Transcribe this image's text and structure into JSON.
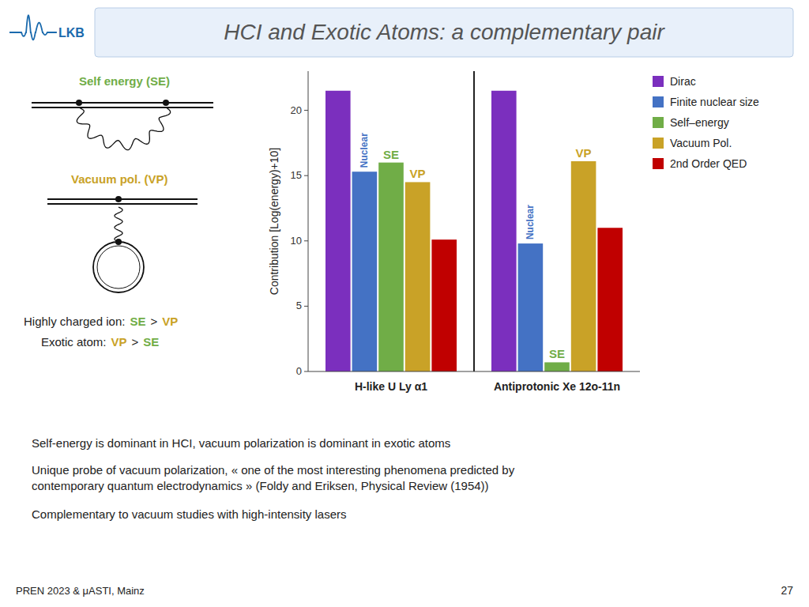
{
  "chart_data": {
    "type": "bar",
    "title": "HCI and Exotic Atoms: a complementary pair",
    "categories": [
      "H-like U Ly α1",
      "Antiprotonic Xe 12o-11n"
    ],
    "series": [
      {
        "name": "Dirac",
        "color": "#7b2fbe",
        "values": [
          21.5,
          21.5
        ]
      },
      {
        "name": "Finite nuclear size",
        "color": "#4472c4",
        "values": [
          15.3,
          9.8
        ]
      },
      {
        "name": "Self–energy",
        "color": "#70ad47",
        "values": [
          16.0,
          0.7
        ]
      },
      {
        "name": "Vacuum Pol.",
        "color": "#c9a227",
        "values": [
          14.5,
          16.1
        ]
      },
      {
        "name": "2nd Order QED",
        "color": "#c00000",
        "values": [
          10.1,
          11.0
        ]
      }
    ],
    "ylabel": "Contribution [Log(energy)+10]",
    "ylim": [
      0,
      23
    ],
    "yticks": [
      0,
      5,
      10,
      15,
      20
    ],
    "grid": false,
    "legend": "right",
    "annotations": [
      {
        "text": "LKB",
        "color": "#1a6aad"
      },
      {
        "text": "Self energy (SE)",
        "color": "#70ad47"
      },
      {
        "text": "Vacuum pol. (VP)",
        "color": "#c9a227"
      },
      {
        "text": "Highly charged ion:"
      },
      {
        "text": "SE",
        "color": "#70ad47"
      },
      {
        "text": ">"
      },
      {
        "text": "VP",
        "color": "#c9a227"
      },
      {
        "text": "Exotic atom:"
      },
      {
        "text": "VP",
        "color": "#c9a227"
      },
      {
        "text": ">"
      },
      {
        "text": "SE",
        "color": "#70ad47"
      },
      {
        "text": "Self-energy is dominant in HCI, vacuum polarization is dominant in exotic atoms"
      },
      {
        "text": "Unique probe of vacuum polarization, « one of the most interesting phenomena predicted by\ncontemporary quantum electrodynamics » (Foldy and Eriksen, Physical Review (1954))"
      },
      {
        "text": "Complementary to vacuum studies with high-intensity lasers"
      },
      {
        "text": "PREN 2023 & μASTI, Mainz"
      },
      {
        "text": "27"
      },
      {
        "text": "Nuclear",
        "color": "#4472c4",
        "series": 1,
        "category": 0
      },
      {
        "text": "SE",
        "color": "#70ad47",
        "series": 2,
        "category": 0
      },
      {
        "text": "VP",
        "color": "#c9a227",
        "series": 3,
        "category": 0
      },
      {
        "text": "Nuclear",
        "color": "#4472c4",
        "series": 1,
        "category": 1
      },
      {
        "text": "SE",
        "color": "#70ad47",
        "series": 2,
        "category": 1
      },
      {
        "text": "VP",
        "color": "#c9a227",
        "series": 3,
        "category": 1
      }
    ]
  }
}
